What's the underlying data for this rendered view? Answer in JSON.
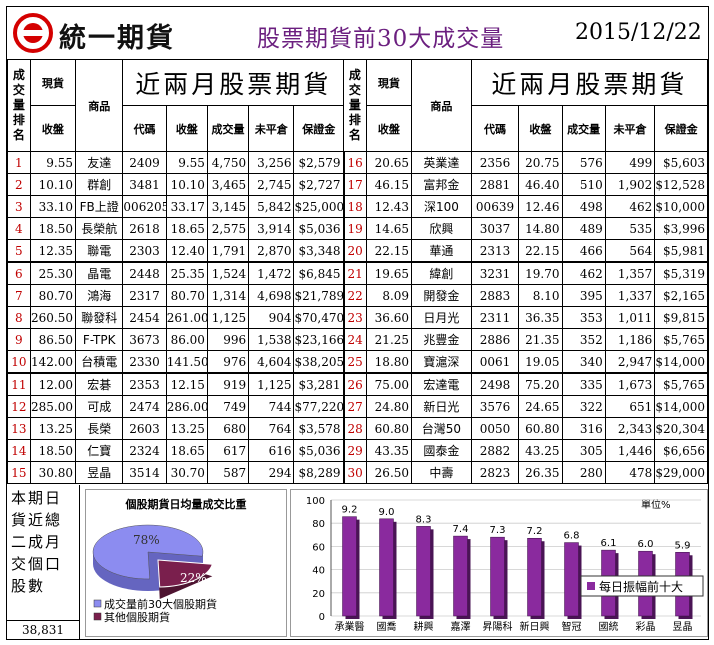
{
  "header": {
    "brand": "統一期貨",
    "title": "股票期貨前30大成交量",
    "date": "2015/12/22"
  },
  "table": {
    "rank_header": "成交量排名",
    "spot_header": "現貨",
    "close_header": "收盤",
    "product_header": "商品",
    "section_title": "近兩月股票期貨",
    "col_code": "代碼",
    "col_close": "收盤",
    "col_volume": "成交量",
    "col_oi": "未平倉",
    "col_margin": "保證金",
    "left": [
      {
        "rank": "1",
        "spot": "9.55",
        "name": "友達",
        "code": "2409",
        "close": "9.55",
        "vol": "4,750",
        "oi": "3,256",
        "margin": "$2,579"
      },
      {
        "rank": "2",
        "spot": "10.10",
        "name": "群創",
        "code": "3481",
        "close": "10.10",
        "vol": "3,465",
        "oi": "2,745",
        "margin": "$2,727"
      },
      {
        "rank": "3",
        "spot": "33.10",
        "name": "FB上證",
        "code": "006205",
        "close": "33.17",
        "vol": "3,145",
        "oi": "5,842",
        "margin": "$25,000"
      },
      {
        "rank": "4",
        "spot": "18.50",
        "name": "長榮航",
        "code": "2618",
        "close": "18.65",
        "vol": "2,575",
        "oi": "3,914",
        "margin": "$5,036"
      },
      {
        "rank": "5",
        "spot": "12.35",
        "name": "聯電",
        "code": "2303",
        "close": "12.40",
        "vol": "1,791",
        "oi": "2,870",
        "margin": "$3,348"
      },
      {
        "rank": "6",
        "spot": "25.30",
        "name": "晶電",
        "code": "2448",
        "close": "25.35",
        "vol": "1,524",
        "oi": "1,472",
        "margin": "$6,845"
      },
      {
        "rank": "7",
        "spot": "80.70",
        "name": "鴻海",
        "code": "2317",
        "close": "80.70",
        "vol": "1,314",
        "oi": "4,698",
        "margin": "$21,789"
      },
      {
        "rank": "8",
        "spot": "260.50",
        "name": "聯發科",
        "code": "2454",
        "close": "261.00",
        "vol": "1,125",
        "oi": "904",
        "margin": "$70,470"
      },
      {
        "rank": "9",
        "spot": "86.50",
        "name": "F-TPK",
        "code": "3673",
        "close": "86.00",
        "vol": "996",
        "oi": "1,538",
        "margin": "$23,166"
      },
      {
        "rank": "10",
        "spot": "142.00",
        "name": "台積電",
        "code": "2330",
        "close": "141.50",
        "vol": "976",
        "oi": "4,604",
        "margin": "$38,205"
      },
      {
        "rank": "11",
        "spot": "12.00",
        "name": "宏碁",
        "code": "2353",
        "close": "12.15",
        "vol": "919",
        "oi": "1,125",
        "margin": "$3,281"
      },
      {
        "rank": "12",
        "spot": "285.00",
        "name": "可成",
        "code": "2474",
        "close": "286.00",
        "vol": "749",
        "oi": "744",
        "margin": "$77,220"
      },
      {
        "rank": "13",
        "spot": "13.25",
        "name": "長榮",
        "code": "2603",
        "close": "13.25",
        "vol": "680",
        "oi": "764",
        "margin": "$3,578"
      },
      {
        "rank": "14",
        "spot": "18.50",
        "name": "仁寶",
        "code": "2324",
        "close": "18.65",
        "vol": "617",
        "oi": "616",
        "margin": "$5,036"
      },
      {
        "rank": "15",
        "spot": "30.80",
        "name": "昱晶",
        "code": "3514",
        "close": "30.70",
        "vol": "587",
        "oi": "294",
        "margin": "$8,289"
      }
    ],
    "right": [
      {
        "rank": "16",
        "spot": "20.65",
        "name": "英業達",
        "code": "2356",
        "close": "20.75",
        "vol": "576",
        "oi": "499",
        "margin": "$5,603"
      },
      {
        "rank": "17",
        "spot": "46.15",
        "name": "富邦金",
        "code": "2881",
        "close": "46.40",
        "vol": "510",
        "oi": "1,902",
        "margin": "$12,528"
      },
      {
        "rank": "18",
        "spot": "12.43",
        "name": "深100",
        "code": "00639",
        "close": "12.46",
        "vol": "498",
        "oi": "462",
        "margin": "$10,000"
      },
      {
        "rank": "19",
        "spot": "14.65",
        "name": "欣興",
        "code": "3037",
        "close": "14.80",
        "vol": "489",
        "oi": "535",
        "margin": "$3,996"
      },
      {
        "rank": "20",
        "spot": "22.15",
        "name": "華通",
        "code": "2313",
        "close": "22.15",
        "vol": "466",
        "oi": "564",
        "margin": "$5,981"
      },
      {
        "rank": "21",
        "spot": "19.65",
        "name": "緯創",
        "code": "3231",
        "close": "19.70",
        "vol": "462",
        "oi": "1,357",
        "margin": "$5,319"
      },
      {
        "rank": "22",
        "spot": "8.09",
        "name": "開發金",
        "code": "2883",
        "close": "8.10",
        "vol": "395",
        "oi": "1,337",
        "margin": "$2,165"
      },
      {
        "rank": "23",
        "spot": "36.60",
        "name": "日月光",
        "code": "2311",
        "close": "36.35",
        "vol": "353",
        "oi": "1,011",
        "margin": "$9,815"
      },
      {
        "rank": "24",
        "spot": "21.25",
        "name": "兆豐金",
        "code": "2886",
        "close": "21.35",
        "vol": "352",
        "oi": "1,186",
        "margin": "$5,765"
      },
      {
        "rank": "25",
        "spot": "18.80",
        "name": "寶滬深",
        "code": "0061",
        "close": "19.05",
        "vol": "340",
        "oi": "2,947",
        "margin": "$14,000"
      },
      {
        "rank": "26",
        "spot": "75.00",
        "name": "宏達電",
        "code": "2498",
        "close": "75.20",
        "vol": "335",
        "oi": "1,673",
        "margin": "$5,765"
      },
      {
        "rank": "27",
        "spot": "24.80",
        "name": "新日光",
        "code": "3576",
        "close": "24.65",
        "vol": "322",
        "oi": "651",
        "margin": "$14,000"
      },
      {
        "rank": "28",
        "spot": "60.80",
        "name": "台灣50",
        "code": "0050",
        "close": "60.80",
        "vol": "316",
        "oi": "2,343",
        "margin": "$20,304"
      },
      {
        "rank": "29",
        "spot": "43.35",
        "name": "國泰金",
        "code": "2882",
        "close": "43.25",
        "vol": "305",
        "oi": "1,446",
        "margin": "$6,656"
      },
      {
        "rank": "30",
        "spot": "26.50",
        "name": "中壽",
        "code": "2823",
        "close": "26.35",
        "vol": "280",
        "oi": "478",
        "margin": "$29,000"
      }
    ]
  },
  "summary": {
    "text": "本期日貨近總二成月交個口股數",
    "value": "38,831"
  },
  "colors": {
    "title_purple": "#6b1f7f",
    "rank_red": "#c00000",
    "pie_main": "#8c8cf0",
    "pie_other": "#7a1f4d",
    "bar": "#8a2a9e"
  },
  "chart_data": [
    {
      "type": "pie",
      "title": "個股期貨日均量成交比重",
      "labels": [
        "成交量前30大個股期貨",
        "其他個股期貨"
      ],
      "values": [
        78,
        22
      ],
      "value_labels": [
        "78%",
        "22%"
      ],
      "legend_position": "bottom"
    },
    {
      "type": "bar",
      "categories": [
        "承業醫",
        "國喬",
        "耕興",
        "嘉澤",
        "昇陽科",
        "新日興",
        "智冠",
        "國統",
        "彩晶",
        "昱晶"
      ],
      "series": [
        {
          "name": "每日振幅前十大",
          "values": [
            9.2,
            9.0,
            8.3,
            7.4,
            7.3,
            7.2,
            6.8,
            6.1,
            6.0,
            5.9
          ]
        }
      ],
      "value_labels": [
        "9.2",
        "9.0",
        "8.3",
        "7.4",
        "7.3",
        "7.2",
        "6.8",
        "6.1",
        "6.0",
        "5.9"
      ],
      "unit_label": "單位%",
      "ylim": [
        0,
        100
      ],
      "yticks": [
        "0",
        "20",
        "40",
        "60",
        "80",
        "100"
      ],
      "grid": true,
      "legend_position": "bottom-right"
    }
  ]
}
